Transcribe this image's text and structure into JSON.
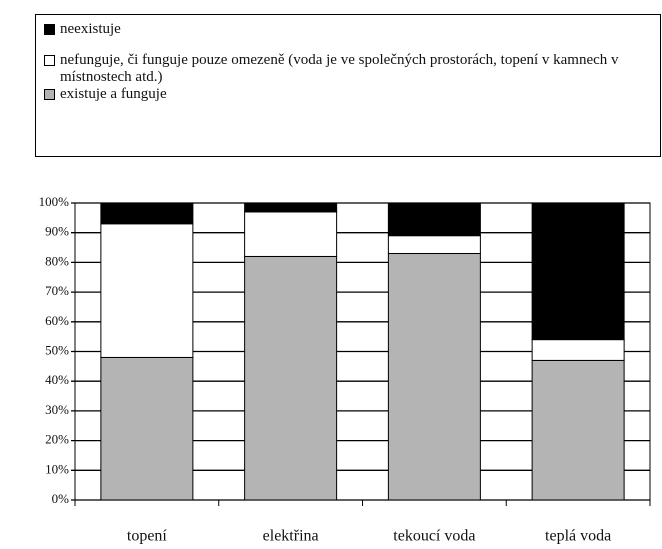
{
  "chart_data": {
    "type": "stacked-bar",
    "categories": [
      "topení",
      "elektřina",
      "tekoucí voda",
      "teplá voda"
    ],
    "series": [
      {
        "name": "existuje a funguje",
        "color": "#b4b4b4",
        "values": [
          48,
          82,
          83,
          47
        ]
      },
      {
        "name": "nefunguje, či funguje pouze omezeně (voda je ve společných prostorách, topení v kamnech v místnostech atd.)",
        "color": "#ffffff",
        "values": [
          45,
          15,
          6,
          7
        ]
      },
      {
        "name": "neexistuje",
        "color": "#000000",
        "values": [
          7,
          3,
          11,
          46
        ]
      }
    ],
    "ylim": [
      0,
      100
    ],
    "yticks": [
      {
        "value": 0,
        "label": "0%"
      },
      {
        "value": 10,
        "label": "10%"
      },
      {
        "value": 20,
        "label": "20%"
      },
      {
        "value": 30,
        "label": "30%"
      },
      {
        "value": 40,
        "label": "40%"
      },
      {
        "value": 50,
        "label": "50%"
      },
      {
        "value": 60,
        "label": "60%"
      },
      {
        "value": 70,
        "label": "70%"
      },
      {
        "value": 80,
        "label": "80%"
      },
      {
        "value": 90,
        "label": "90%"
      },
      {
        "value": 100,
        "label": "100%"
      }
    ],
    "grid": true
  }
}
